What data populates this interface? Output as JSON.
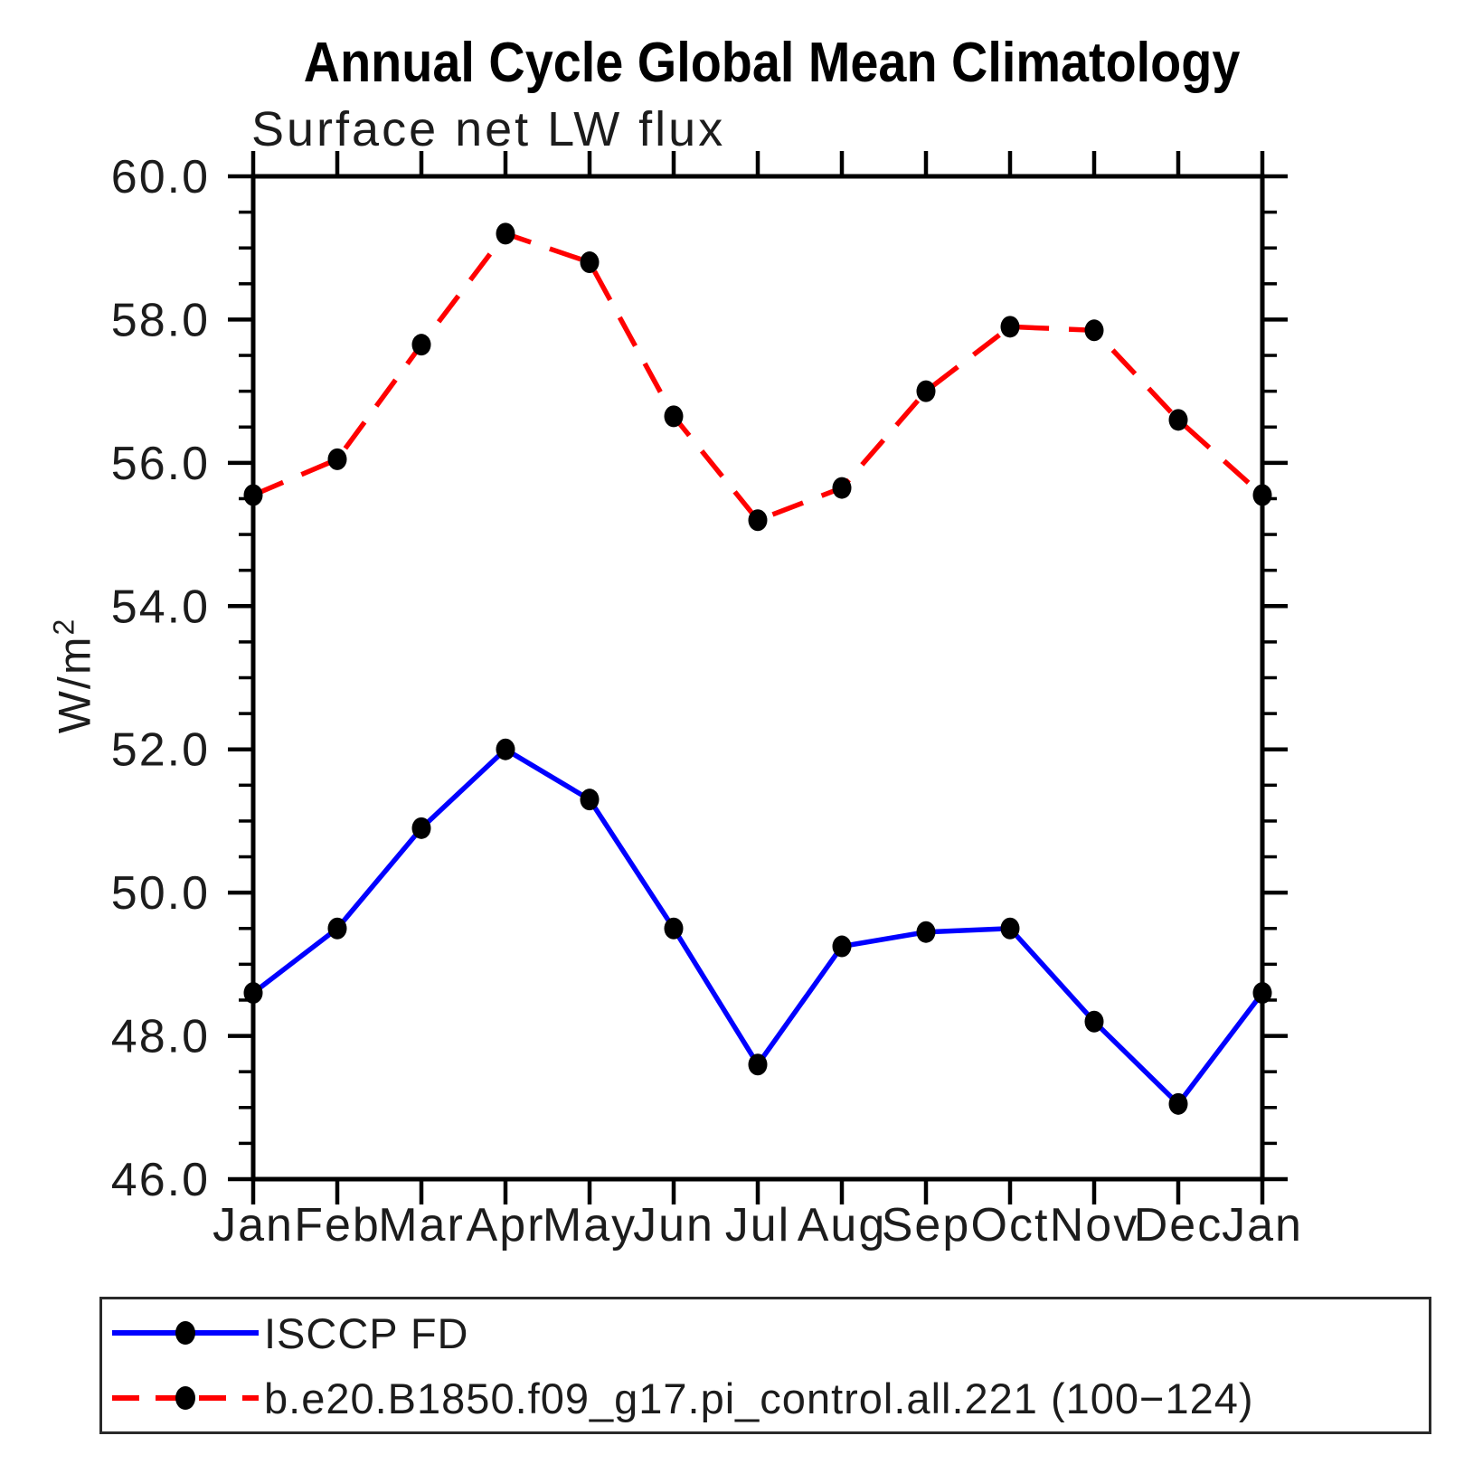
{
  "title": "Annual Cycle Global Mean Climatology",
  "subtitle": "Surface net LW flux",
  "y_axis": {
    "label_base": "W/m",
    "label_exponent": "2"
  },
  "legend": {
    "items": [
      {
        "label": "ISCCP FD",
        "color": "#0000ff",
        "style": "solid"
      },
      {
        "label": "b.e20.B1850.f09_g17.pi_control.all.221 (100−124)",
        "color": "#ff0000",
        "style": "dashed"
      }
    ]
  },
  "chart_data": {
    "type": "line",
    "title": "Annual Cycle Global Mean Climatology",
    "subtitle": "Surface net LW flux",
    "xlabel": "",
    "ylabel": "W/m²",
    "categories": [
      "Jan",
      "Feb",
      "Mar",
      "Apr",
      "May",
      "Jun",
      "Jul",
      "Aug",
      "Sep",
      "Oct",
      "Nov",
      "Dec",
      "Jan"
    ],
    "ylim": [
      46.0,
      60.0
    ],
    "ytick_interval": 2.0,
    "yminor_interval": 0.5,
    "grid": false,
    "legend_position": "bottom",
    "marker": "filled-circle",
    "series": [
      {
        "name": "ISCCP FD",
        "color": "#0000ff",
        "style": "solid",
        "values": [
          48.6,
          49.5,
          50.9,
          52.0,
          51.3,
          49.5,
          47.6,
          49.25,
          49.45,
          49.5,
          48.2,
          47.05,
          48.6
        ]
      },
      {
        "name": "b.e20.B1850.f09_g17.pi_control.all.221 (100−124)",
        "color": "#ff0000",
        "style": "dashed",
        "values": [
          55.55,
          56.05,
          57.65,
          59.2,
          58.8,
          56.65,
          55.2,
          55.65,
          57.0,
          57.9,
          57.85,
          56.6,
          55.55
        ]
      }
    ]
  }
}
